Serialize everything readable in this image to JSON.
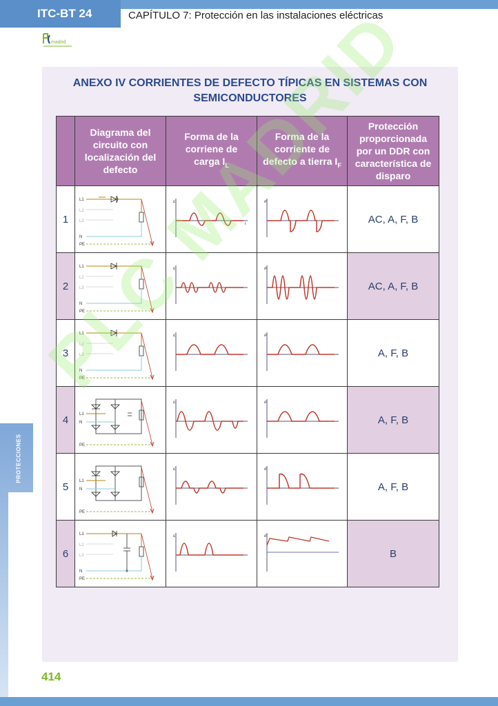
{
  "header": {
    "code": "ITC-BT 24",
    "chapter": "CAPÍTULO 7: Protección en las instalaciones eléctricas",
    "logo_text": "madrid"
  },
  "sidebar": {
    "label": "PROTECCIONES"
  },
  "annex": {
    "title": "ANEXO IV CORRIENTES DE DEFECTO TÍPICAS EN SISTEMAS CON SEMICONDUCTORES"
  },
  "table": {
    "headers": {
      "diagram": "Diagrama del circuito con localización del defecto",
      "load": "Forma de la corriene de carga I",
      "load_sub": "L",
      "fault": "Forma de la corriente de defecto a tierra I",
      "fault_sub": "F",
      "protection": "Protección proporcionada por un DDR con característica de disparo"
    },
    "rows": [
      {
        "number": "1",
        "protection": "AC, A, F, B"
      },
      {
        "number": "2",
        "protection": "AC, A, F, B"
      },
      {
        "number": "3",
        "protection": "A, F, B"
      },
      {
        "number": "4",
        "protection": "A, F, B"
      },
      {
        "number": "5",
        "protection": "A, F, B"
      },
      {
        "number": "6",
        "protection": "B"
      }
    ],
    "labels": {
      "l1": "L1",
      "l2": "L2",
      "l3": "L3",
      "n": "N",
      "pe": "PE",
      "il": "iL",
      "if": "iF",
      "t": "t"
    }
  },
  "footer": {
    "page": "414"
  },
  "watermark": "PLC MADRID",
  "colors": {
    "header_blue": "#5b8fc9",
    "title_blue": "#2a4a8c",
    "header_purple": "#b07cb0",
    "row_shade": "#e2cfe2",
    "wave_red": "#c0392b",
    "page_green": "#7cb829"
  }
}
